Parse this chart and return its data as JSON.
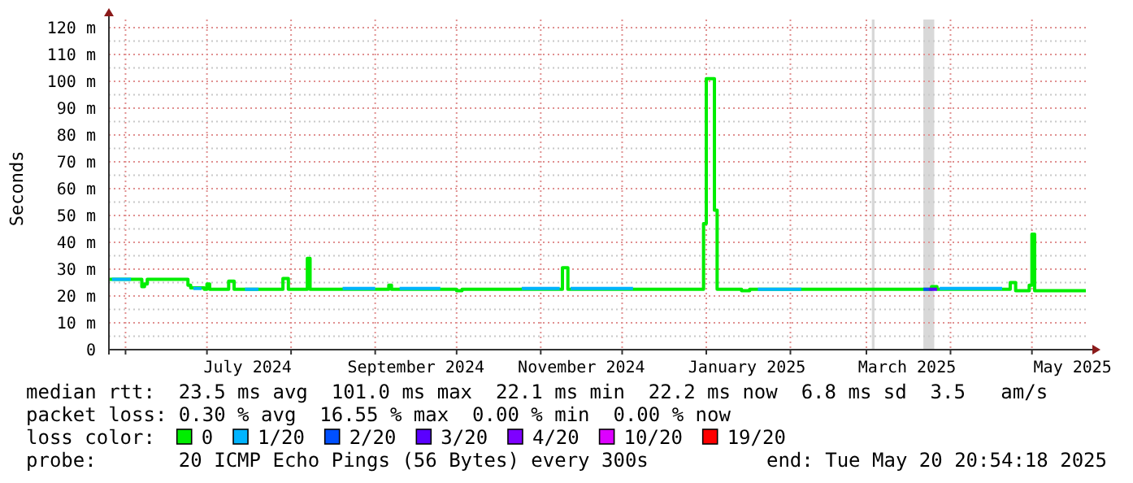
{
  "chart_data": {
    "type": "step",
    "ylabel": "Seconds",
    "legend_title": "loss color:",
    "legend": "bottom",
    "grid": true,
    "xlim": [
      "2024-05-25T21:00",
      "2025-05-20T20:54"
    ],
    "xticks": [
      {
        "value": "2024-06-01",
        "label": null
      },
      {
        "value": "2024-07-01",
        "label": null
      },
      {
        "value": "2024-07-16",
        "label": "July 2024"
      },
      {
        "value": "2024-08-01",
        "label": null
      },
      {
        "value": "2024-09-01",
        "label": null
      },
      {
        "value": "2024-09-16",
        "label": "September 2024"
      },
      {
        "value": "2024-10-01",
        "label": null
      },
      {
        "value": "2024-11-01",
        "label": null
      },
      {
        "value": "2024-11-16",
        "label": "November 2024"
      },
      {
        "value": "2024-12-01",
        "label": null
      },
      {
        "value": "2025-01-01",
        "label": null
      },
      {
        "value": "2025-01-16",
        "label": "January 2025"
      },
      {
        "value": "2025-02-01",
        "label": null
      },
      {
        "value": "2025-03-01",
        "label": null
      },
      {
        "value": "2025-03-16",
        "label": "March 2025"
      },
      {
        "value": "2025-04-01",
        "label": null
      },
      {
        "value": "2025-05-01",
        "label": null
      },
      {
        "value": "2025-05-16",
        "label": "May 2025"
      }
    ],
    "ylim": [
      0,
      120
    ],
    "yticks": [
      0,
      {
        "value": 5,
        "label": null
      },
      {
        "value": 10,
        "label": "10 m"
      },
      {
        "value": 15,
        "label": null
      },
      {
        "value": 20,
        "label": "20 m"
      },
      {
        "value": 25,
        "label": null
      },
      {
        "value": 30,
        "label": "30 m"
      },
      {
        "value": 35,
        "label": null
      },
      {
        "value": 40,
        "label": "40 m"
      },
      {
        "value": 45,
        "label": null
      },
      {
        "value": 50,
        "label": "50 m"
      },
      {
        "value": 55,
        "label": null
      },
      {
        "value": 60,
        "label": "60 m"
      },
      {
        "value": 65,
        "label": null
      },
      {
        "value": 70,
        "label": "70 m"
      },
      {
        "value": 75,
        "label": null
      },
      {
        "value": 80,
        "label": "80 m"
      },
      {
        "value": 85,
        "label": null
      },
      {
        "value": 90,
        "label": "90 m"
      },
      {
        "value": 95,
        "label": null
      },
      {
        "value": 100,
        "label": "100 m"
      },
      {
        "value": 105,
        "label": null
      },
      {
        "value": 110,
        "label": "110 m"
      },
      {
        "value": 115,
        "label": null
      },
      {
        "value": 120,
        "label": "120 m"
      }
    ],
    "bands": [
      {
        "axis": "x",
        "from": "2025-03-03",
        "to": "2025-03-04",
        "color": "#d8d8d8"
      },
      {
        "axis": "x",
        "from": "2025-03-22",
        "to": "2025-03-26",
        "color": "#d8d8d8"
      }
    ],
    "series": [
      {
        "name": "0",
        "color": "#00ee00",
        "x": [
          "2024-05-25T21:00",
          "2024-06-07",
          "2024-06-08",
          "2024-06-09",
          "2024-06-24",
          "2024-06-25",
          "2024-06-30",
          "2024-07-01",
          "2024-07-02",
          "2024-07-09",
          "2024-07-11",
          "2024-07-29",
          "2024-07-31",
          "2024-08-07",
          "2024-08-08",
          "2024-09-06",
          "2024-09-07",
          "2024-10-01",
          "2024-10-03",
          "2024-11-09",
          "2024-11-11",
          "2024-12-31",
          "2025-01-01",
          "2025-01-04",
          "2025-01-05",
          "2025-01-14",
          "2025-01-17",
          "2025-03-25",
          "2025-03-27",
          "2025-04-23",
          "2025-04-25",
          "2025-04-30",
          "2025-05-01",
          "2025-05-02",
          "2025-05-20T20:54"
        ],
        "values": [
          26.2,
          23.5,
          24.5,
          26.2,
          24,
          23,
          22.5,
          24.5,
          22.5,
          25.5,
          22.5,
          26.5,
          22.5,
          34,
          22.5,
          24,
          22.5,
          22,
          22.5,
          30.5,
          22.5,
          47,
          101,
          52,
          22.5,
          22,
          22.5,
          23.5,
          22.5,
          25,
          22,
          24,
          43,
          22,
          22
        ]
      },
      {
        "name": "1/20",
        "color": "#00b4ff",
        "x": [
          "2024-05-27",
          "2024-06-03"
        ],
        "values": [
          26.2,
          26.2
        ]
      },
      {
        "color": "#00b4ff",
        "x": [
          "2024-06-26",
          "2024-06-29"
        ],
        "values": [
          22.8,
          22.8
        ]
      },
      {
        "color": "#00b4ff",
        "x": [
          "2024-07-15",
          "2024-07-20"
        ],
        "values": [
          22.5,
          22.5
        ]
      },
      {
        "color": "#00b4ff",
        "x": [
          "2024-08-20",
          "2024-09-01"
        ],
        "values": [
          22.8,
          22.8
        ]
      },
      {
        "color": "#00b4ff",
        "x": [
          "2024-09-10",
          "2024-09-25"
        ],
        "values": [
          22.8,
          22.8
        ]
      },
      {
        "color": "#00b4ff",
        "x": [
          "2024-10-25",
          "2024-11-08"
        ],
        "values": [
          22.8,
          22.8
        ]
      },
      {
        "color": "#00b4ff",
        "x": [
          "2024-11-12",
          "2024-12-05"
        ],
        "values": [
          22.8,
          22.8
        ]
      },
      {
        "color": "#00b4ff",
        "x": [
          "2025-01-20",
          "2025-02-05"
        ],
        "values": [
          22.5,
          22.5
        ]
      },
      {
        "color": "#00b4ff",
        "x": [
          "2025-03-28",
          "2025-04-20"
        ],
        "values": [
          22.8,
          22.8
        ]
      },
      {
        "name": "2/20",
        "color": "#0050ff",
        "x": [
          "2025-03-22",
          "2025-03-24"
        ],
        "values": [
          22.5,
          22.5
        ]
      },
      {
        "name": "3/20",
        "color": "#5a00ff",
        "x": [
          "2025-03-24",
          "2025-03-27"
        ],
        "values": [
          22.5,
          22.5
        ]
      },
      {
        "name": "4/20",
        "color": "#7e00ff"
      },
      {
        "name": "10/20",
        "color": "#dd00ff"
      },
      {
        "name": "19/20",
        "color": "#ff0000"
      }
    ],
    "annotations": [
      "median rtt:  23.5 ms avg  101.0 ms max  22.1 ms min  22.2 ms now  6.8 ms sd  3.5   am/s",
      "packet loss: 0.30 % avg  16.55 % max  0.00 % min  0.00 % now",
      "probe:       20 ICMP Echo Pings (56 Bytes) every 300s",
      "end: Tue May 20 20:54:18 2025"
    ]
  }
}
